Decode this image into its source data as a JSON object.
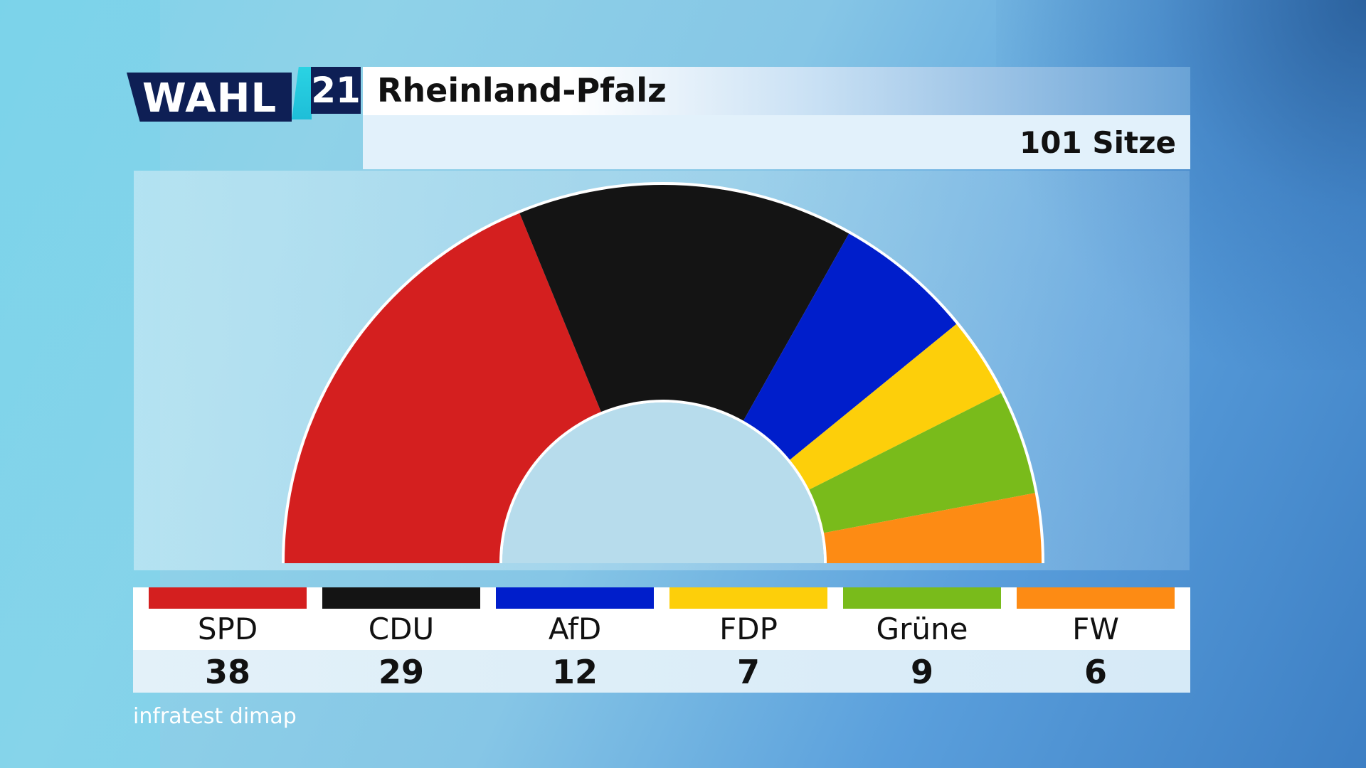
{
  "header": {
    "logo_text": "WAHL",
    "logo_year": "21",
    "title": "Rheinland-Pfalz",
    "seats_label": "101 Sitze"
  },
  "chart_data": {
    "type": "pie",
    "subtype": "hemicycle",
    "total_seats": 101,
    "categories": [
      "SPD",
      "CDU",
      "AfD",
      "FDP",
      "Grüne",
      "FW"
    ],
    "values": [
      38,
      29,
      12,
      7,
      9,
      6
    ],
    "colors": [
      "#d41f1f",
      "#141414",
      "#001ecb",
      "#fdcf0a",
      "#79bb1b",
      "#fd8b14"
    ]
  },
  "source": "infratest dimap"
}
